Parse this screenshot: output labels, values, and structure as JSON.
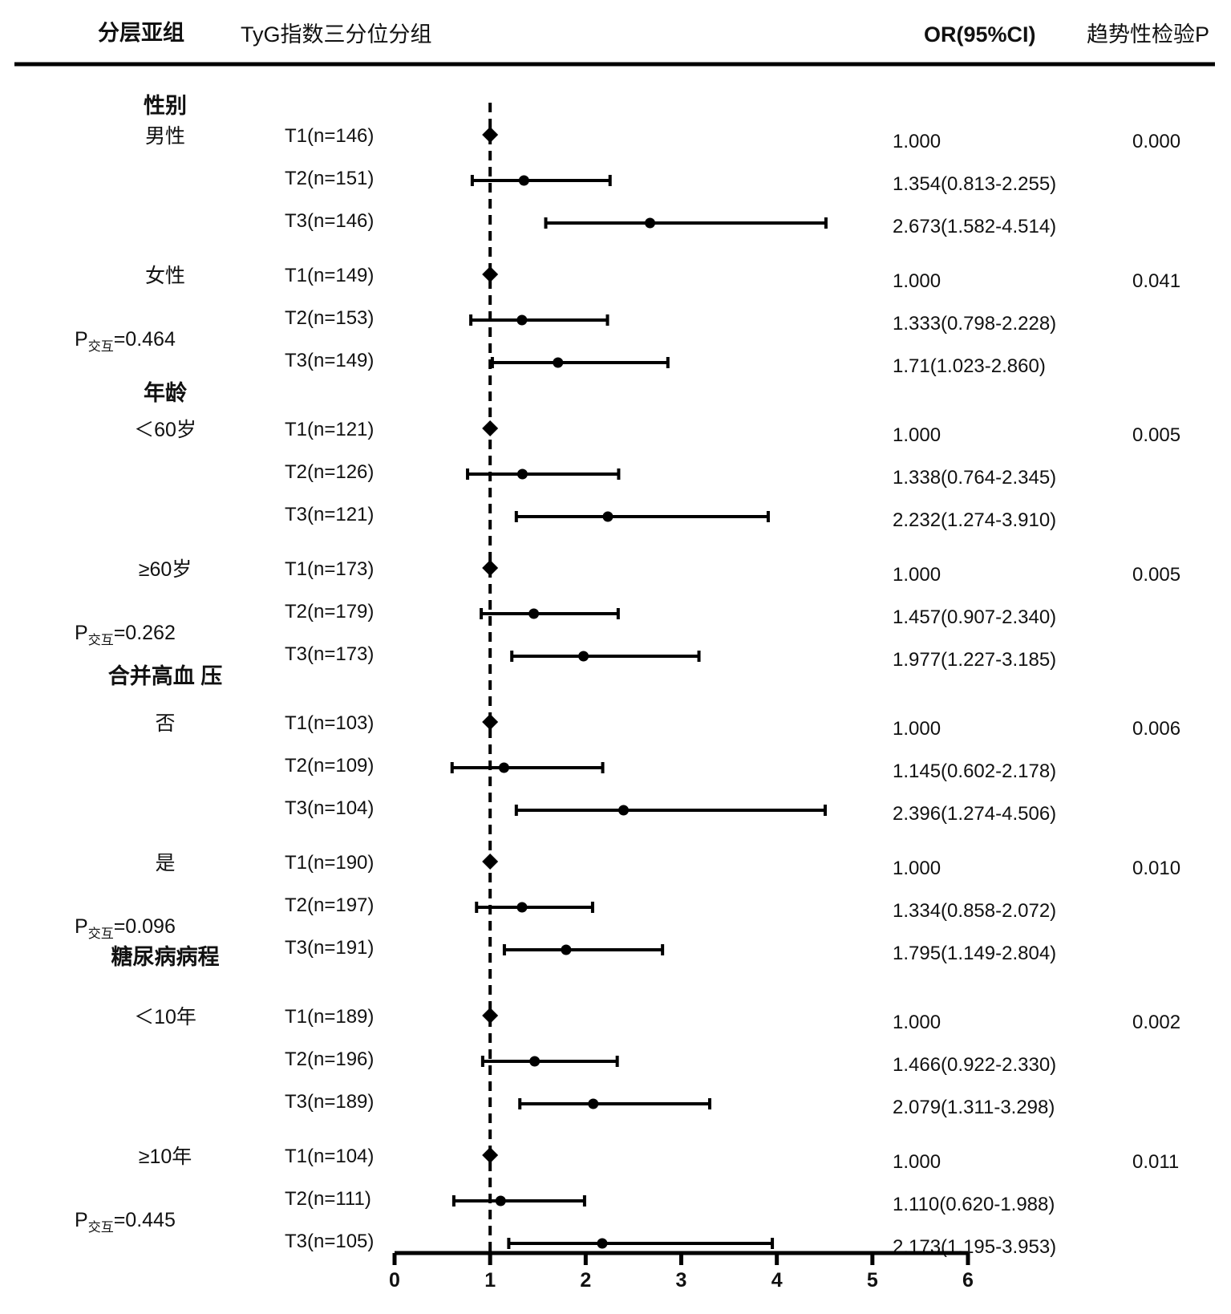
{
  "header": {
    "col_subgroup": "分层亚组",
    "col_tertile": "TyG指数三分位分组",
    "col_or": "OR(95%CI)",
    "col_trend_p": "趋势性检验P"
  },
  "chart_data": {
    "type": "forest",
    "xlim": [
      0,
      6
    ],
    "xticks": [
      "0",
      "1",
      "2",
      "3",
      "4",
      "5",
      "6"
    ],
    "reference_line": 1,
    "xlabel": "",
    "groups": [
      {
        "title": "性别",
        "p_interaction": {
          "prefix": "P",
          "sub": "交互",
          "value": "=0.464"
        },
        "subgroups": [
          {
            "label": "男性",
            "trend_p": "0.000",
            "rows": [
              {
                "tier": "T1(n=146)",
                "or_text": "1.000",
                "or": 1,
                "lo": 1,
                "hi": 1,
                "ref": true
              },
              {
                "tier": "T2(n=151)",
                "or_text": "1.354(0.813-2.255)",
                "or": 1.354,
                "lo": 0.813,
                "hi": 2.255
              },
              {
                "tier": "T3(n=146)",
                "or_text": "2.673(1.582-4.514)",
                "or": 2.673,
                "lo": 1.582,
                "hi": 4.514
              }
            ]
          },
          {
            "label": "女性",
            "trend_p": "0.041",
            "rows": [
              {
                "tier": "T1(n=149)",
                "or_text": "1.000",
                "or": 1,
                "lo": 1,
                "hi": 1,
                "ref": true
              },
              {
                "tier": "T2(n=153)",
                "or_text": "1.333(0.798-2.228)",
                "or": 1.333,
                "lo": 0.798,
                "hi": 2.228
              },
              {
                "tier": "T3(n=149)",
                "or_text": "1.71(1.023-2.860)",
                "or": 1.71,
                "lo": 1.023,
                "hi": 2.86
              }
            ]
          }
        ]
      },
      {
        "title": "年龄",
        "p_interaction": {
          "prefix": "P",
          "sub": "交互",
          "value": "=0.262"
        },
        "subgroups": [
          {
            "label": "＜60岁",
            "trend_p": "0.005",
            "rows": [
              {
                "tier": "T1(n=121)",
                "or_text": "1.000",
                "or": 1,
                "lo": 1,
                "hi": 1,
                "ref": true
              },
              {
                "tier": "T2(n=126)",
                "or_text": "1.338(0.764-2.345)",
                "or": 1.338,
                "lo": 0.764,
                "hi": 2.345
              },
              {
                "tier": "T3(n=121)",
                "or_text": "2.232(1.274-3.910)",
                "or": 2.232,
                "lo": 1.274,
                "hi": 3.91
              }
            ]
          },
          {
            "label": "≥60岁",
            "trend_p": "0.005",
            "rows": [
              {
                "tier": "T1(n=173)",
                "or_text": "1.000",
                "or": 1,
                "lo": 1,
                "hi": 1,
                "ref": true
              },
              {
                "tier": "T2(n=179)",
                "or_text": "1.457(0.907-2.340)",
                "or": 1.457,
                "lo": 0.907,
                "hi": 2.34
              },
              {
                "tier": "T3(n=173)",
                "or_text": "1.977(1.227-3.185)",
                "or": 1.977,
                "lo": 1.227,
                "hi": 3.185
              }
            ]
          }
        ]
      },
      {
        "title": "合并高血 压",
        "p_interaction": {
          "prefix": "P",
          "sub": "交互",
          "value": "=0.096"
        },
        "subgroups": [
          {
            "label": "否",
            "trend_p": "0.006",
            "rows": [
              {
                "tier": "T1(n=103)",
                "or_text": "1.000",
                "or": 1,
                "lo": 1,
                "hi": 1,
                "ref": true
              },
              {
                "tier": "T2(n=109)",
                "or_text": "1.145(0.602-2.178)",
                "or": 1.145,
                "lo": 0.602,
                "hi": 2.178
              },
              {
                "tier": "T3(n=104)",
                "or_text": "2.396(1.274-4.506)",
                "or": 2.396,
                "lo": 1.274,
                "hi": 4.506
              }
            ]
          },
          {
            "label": "是",
            "trend_p": "0.010",
            "rows": [
              {
                "tier": "T1(n=190)",
                "or_text": "1.000",
                "or": 1,
                "lo": 1,
                "hi": 1,
                "ref": true
              },
              {
                "tier": "T2(n=197)",
                "or_text": "1.334(0.858-2.072)",
                "or": 1.334,
                "lo": 0.858,
                "hi": 2.072
              },
              {
                "tier": "T3(n=191)",
                "or_text": "1.795(1.149-2.804)",
                "or": 1.795,
                "lo": 1.149,
                "hi": 2.804
              }
            ]
          }
        ]
      },
      {
        "title": "糖尿病病程",
        "p_interaction": {
          "prefix": "P",
          "sub": "交互",
          "value": "=0.445"
        },
        "subgroups": [
          {
            "label": "＜10年",
            "trend_p": "0.002",
            "rows": [
              {
                "tier": "T1(n=189)",
                "or_text": "1.000",
                "or": 1,
                "lo": 1,
                "hi": 1,
                "ref": true
              },
              {
                "tier": "T2(n=196)",
                "or_text": "1.466(0.922-2.330)",
                "or": 1.466,
                "lo": 0.922,
                "hi": 2.33
              },
              {
                "tier": "T3(n=189)",
                "or_text": "2.079(1.311-3.298)",
                "or": 2.079,
                "lo": 1.311,
                "hi": 3.298
              }
            ]
          },
          {
            "label": "≥10年",
            "trend_p": "0.011",
            "rows": [
              {
                "tier": "T1(n=104)",
                "or_text": "1.000",
                "or": 1,
                "lo": 1,
                "hi": 1,
                "ref": true
              },
              {
                "tier": "T2(n=111)",
                "or_text": "1.110(0.620-1.988)",
                "or": 1.11,
                "lo": 0.62,
                "hi": 1.988
              },
              {
                "tier": "T3(n=105)",
                "or_text": "2.173(1.195-3.953)",
                "or": 2.173,
                "lo": 1.195,
                "hi": 3.953
              }
            ]
          }
        ]
      }
    ]
  }
}
